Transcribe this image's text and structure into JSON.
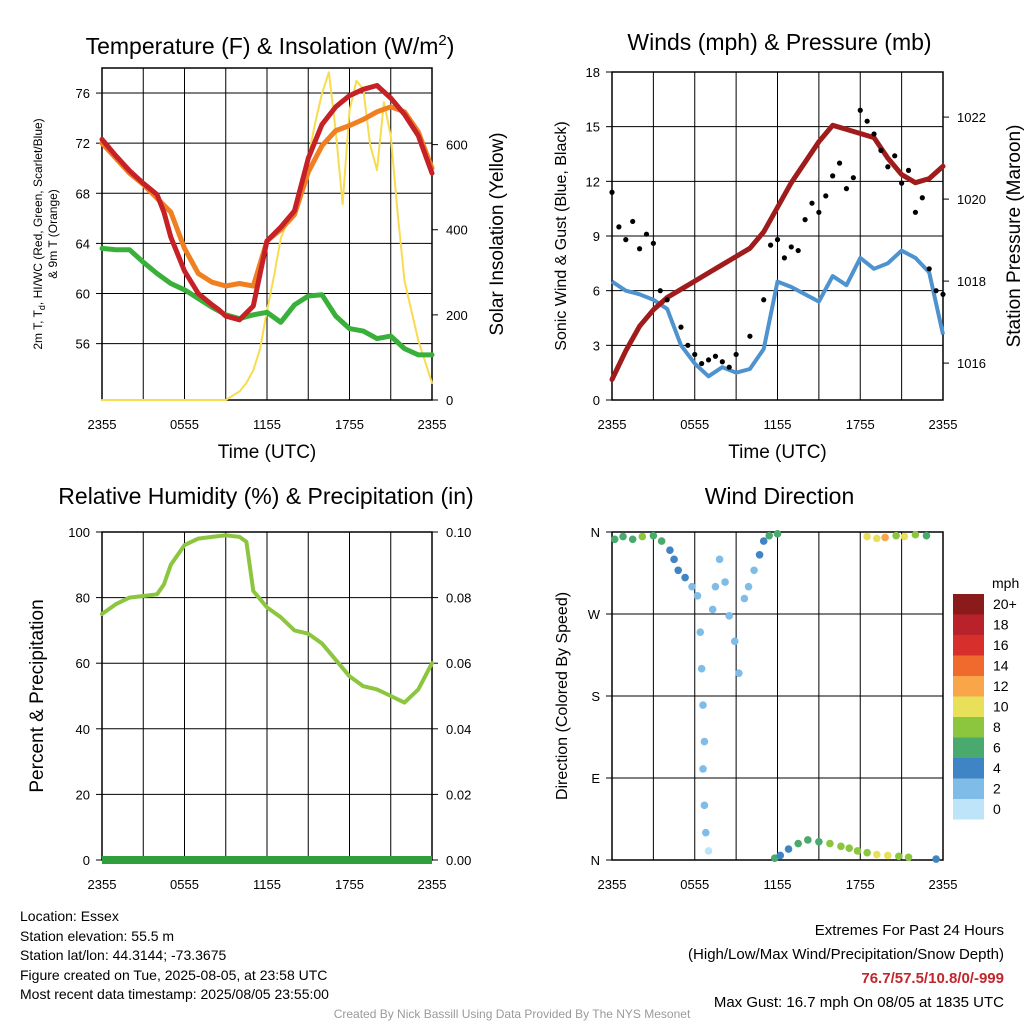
{
  "panels": {
    "temperature": {
      "title_pre": "Temperature (F) & Insolation (W/m",
      "title_sup": "2",
      "title_post": ")",
      "ylabel_left_line1": "2m T, T",
      "ylabel_left_sub": "d",
      "ylabel_left_line1_rest": ", HI/WC (Red, Green, Scarlet/Blue)",
      "ylabel_left_line2": "& 9m T (Orange)",
      "ylabel_right": "Solar Insolation (Yellow)",
      "xlabel": "Time (UTC)"
    },
    "winds": {
      "title": "Winds (mph) & Pressure (mb)",
      "ylabel_left": "Sonic Wind & Gust (Blue, Black)",
      "ylabel_right": "Station Pressure (Maroon)",
      "xlabel": "Time (UTC)"
    },
    "humidity": {
      "title": "Relative Humidity (%) & Precipitation (in)",
      "ylabel_left": "Percent & Precipitation"
    },
    "direction": {
      "title": "Wind Direction",
      "ylabel_left": "Direction (Colored By Speed)",
      "legend_title": "mph"
    }
  },
  "info": {
    "location": "Location: Essex",
    "elevation": "Station elevation: 55.5 m",
    "latlon": "Station lat/lon: 44.3144; -73.3675",
    "created": "Figure created on Tue, 2025-08-05, at 23:58 UTC",
    "recent": "Most recent data timestamp: 2025/08/05 23:55:00"
  },
  "extremes": {
    "heading": "Extremes For Past 24 Hours",
    "subheading": "(High/Low/Max Wind/Precipitation/Snow Depth)",
    "values": "76.7/57.5/10.8/0/-999",
    "max_gust": "Max Gust: 16.7 mph On 08/05 at 1835 UTC"
  },
  "credit": "Created By Nick Bassill Using Data Provided By The NYS Mesonet",
  "chart_data": [
    {
      "type": "line",
      "title": "Temperature (F) & Insolation (W/m2)",
      "xlabel": "Time (UTC)",
      "ylabel": "2m T, Td, HI/WC (Red, Green, Scarlet/Blue) & 9m T (Orange)",
      "y2label": "Solar Insolation (Yellow)",
      "x_ticks": [
        "2355",
        "0555",
        "1155",
        "1755",
        "2355"
      ],
      "x_range_hours": [
        0,
        24
      ],
      "ylim": [
        51.5,
        78
      ],
      "y_ticks": [
        56,
        60,
        64,
        68,
        72,
        76
      ],
      "y2lim": [
        0,
        780
      ],
      "y2_ticks": [
        0,
        200,
        400,
        600
      ],
      "grid": true,
      "colors": {
        "temp_2m": "#c62127",
        "heat_index": "#e01b1b",
        "temp_9m": "#f07f22",
        "dewpoint": "#39b03a",
        "insolation": "#f7dc4f"
      },
      "series": [
        {
          "name": "2m T",
          "axis": "left",
          "color": "#c62127",
          "x": [
            0,
            1,
            2,
            3,
            4,
            4.5,
            5,
            6,
            7,
            8,
            8.5,
            9,
            10,
            11,
            12,
            13,
            14,
            15,
            16,
            17,
            18,
            19,
            20,
            21,
            22,
            23,
            24
          ],
          "y": [
            72.3,
            71.0,
            69.8,
            68.8,
            67.9,
            66.5,
            64.5,
            61.8,
            60.0,
            59.1,
            58.7,
            58.2,
            57.9,
            59.0,
            64.2,
            65.3,
            66.6,
            70.8,
            73.5,
            74.9,
            75.8,
            76.3,
            76.6,
            75.6,
            74.3,
            72.6,
            69.6
          ]
        },
        {
          "name": "9m T",
          "axis": "left",
          "color": "#f07f22",
          "x": [
            0,
            1,
            2,
            3,
            4,
            5,
            6,
            7,
            8,
            9,
            10,
            11,
            12,
            13,
            14,
            15,
            16,
            17,
            18,
            19,
            20,
            21,
            22,
            23,
            24
          ],
          "y": [
            72.0,
            70.8,
            69.6,
            68.7,
            67.6,
            66.5,
            63.6,
            61.6,
            60.9,
            60.6,
            60.8,
            60.6,
            64.2,
            65.1,
            66.3,
            69.7,
            71.8,
            73.0,
            73.4,
            73.9,
            74.5,
            74.9,
            74.5,
            72.9,
            70.0
          ]
        },
        {
          "name": "2m Td",
          "axis": "left",
          "color": "#39b03a",
          "x": [
            0,
            1,
            2,
            3,
            4,
            5,
            6,
            7,
            8,
            9,
            10,
            11,
            12,
            13,
            14,
            15,
            16,
            17,
            18,
            19,
            20,
            21,
            22,
            23,
            24
          ],
          "y": [
            63.6,
            63.5,
            63.5,
            62.5,
            61.6,
            60.8,
            60.3,
            59.6,
            58.9,
            58.3,
            58.0,
            58.3,
            58.5,
            57.7,
            59.1,
            59.8,
            59.9,
            58.2,
            57.2,
            57.0,
            56.4,
            56.6,
            55.6,
            55.1,
            55.1
          ]
        },
        {
          "name": "Solar Insolation",
          "axis": "right",
          "color": "#f7dc4f",
          "x": [
            0,
            9,
            9.5,
            10,
            10.5,
            11,
            11.5,
            12,
            12.5,
            13,
            13.5,
            14,
            14.5,
            15,
            15.5,
            16,
            16.5,
            17,
            17.5,
            18,
            18.5,
            19,
            19.5,
            20,
            20.5,
            21,
            21.5,
            22,
            23,
            24
          ],
          "y": [
            0,
            0,
            10,
            20,
            40,
            70,
            120,
            210,
            290,
            380,
            420,
            450,
            500,
            570,
            650,
            720,
            770,
            630,
            460,
            680,
            750,
            730,
            600,
            540,
            700,
            620,
            440,
            280,
            140,
            40
          ]
        }
      ]
    },
    {
      "type": "line",
      "title": "Winds (mph) & Pressure (mb)",
      "xlabel": "Time (UTC)",
      "ylabel": "Sonic Wind & Gust (Blue, Black)",
      "y2label": "Station Pressure (Maroon)",
      "x_ticks": [
        "2355",
        "0555",
        "1155",
        "1755",
        "2355"
      ],
      "x_range_hours": [
        0,
        24
      ],
      "ylim": [
        0,
        18
      ],
      "y_ticks": [
        0,
        3,
        6,
        9,
        12,
        15,
        18
      ],
      "y2lim": [
        1015.1,
        1023.1
      ],
      "y2_ticks": [
        1016,
        1018,
        1020,
        1022
      ],
      "grid": true,
      "colors": {
        "wind": "#4e93cf",
        "gust": "#000000",
        "pressure": "#a01b1b"
      },
      "series": [
        {
          "name": "Sonic Wind",
          "axis": "left",
          "color": "#4e93cf",
          "x": [
            0,
            1,
            2,
            3,
            4,
            5,
            6,
            7,
            8,
            9,
            10,
            11,
            12,
            13,
            14,
            15,
            16,
            17,
            18,
            19,
            20,
            21,
            22,
            23,
            24
          ],
          "y": [
            6.5,
            6.0,
            5.8,
            5.5,
            5.0,
            3.0,
            2.0,
            1.3,
            1.8,
            1.5,
            1.7,
            2.8,
            6.5,
            6.2,
            5.8,
            5.4,
            6.8,
            6.3,
            7.8,
            7.2,
            7.5,
            8.2,
            7.8,
            7.0,
            3.6
          ]
        },
        {
          "name": "Gust",
          "axis": "left",
          "color": "#000000",
          "type": "scatter",
          "x": [
            0,
            0.5,
            1,
            1.5,
            2,
            2.5,
            3,
            3.5,
            4,
            5,
            5.5,
            6,
            6.5,
            7,
            7.5,
            8,
            8.5,
            9,
            10,
            11,
            11.5,
            12,
            12.5,
            13,
            13.5,
            14,
            14.5,
            15,
            15.5,
            16,
            16.5,
            17,
            17.5,
            18,
            18.5,
            19,
            19.5,
            20,
            20.5,
            21,
            21.5,
            22,
            22.5,
            23,
            23.5,
            24
          ],
          "y": [
            11.4,
            9.5,
            8.8,
            9.8,
            8.3,
            9.1,
            8.6,
            6.0,
            5.5,
            4.0,
            3.0,
            2.5,
            2.0,
            2.2,
            2.4,
            2.1,
            1.8,
            2.5,
            3.5,
            5.5,
            8.5,
            8.8,
            7.8,
            8.4,
            8.2,
            9.9,
            10.8,
            10.3,
            11.2,
            12.3,
            13.0,
            11.6,
            12.2,
            15.9,
            15.3,
            14.6,
            13.7,
            12.8,
            13.4,
            11.9,
            12.6,
            10.3,
            11.1,
            7.2,
            6.0,
            5.8
          ]
        },
        {
          "name": "Station Pressure",
          "axis": "right",
          "color": "#a01b1b",
          "x": [
            0,
            1,
            2,
            3,
            4,
            5,
            6,
            7,
            8,
            9,
            10,
            11,
            12,
            13,
            14,
            15,
            16,
            17,
            18,
            19,
            20,
            21,
            22,
            23,
            24
          ],
          "y": [
            1015.6,
            1016.3,
            1016.9,
            1017.3,
            1017.6,
            1017.8,
            1018.0,
            1018.2,
            1018.4,
            1018.6,
            1018.8,
            1019.2,
            1019.8,
            1020.4,
            1020.9,
            1021.4,
            1021.8,
            1021.7,
            1021.6,
            1021.5,
            1021.0,
            1020.6,
            1020.4,
            1020.5,
            1020.8
          ]
        }
      ]
    },
    {
      "type": "line",
      "title": "Relative Humidity (%) & Precipitation (in)",
      "ylabel": "Percent & Precipitation",
      "x_ticks": [
        "2355",
        "0555",
        "1155",
        "1755",
        "2355"
      ],
      "x_range_hours": [
        0,
        24
      ],
      "ylim": [
        0,
        100
      ],
      "y_ticks": [
        0,
        20,
        40,
        60,
        80,
        100
      ],
      "y2lim": [
        0,
        0.1
      ],
      "y2_ticks": [
        "0.00",
        "0.02",
        "0.04",
        "0.06",
        "0.08",
        "0.10"
      ],
      "grid": true,
      "colors": {
        "rh": "#8cc63f",
        "precip": "#2f9e3c"
      },
      "series": [
        {
          "name": "Relative Humidity",
          "axis": "left",
          "color": "#8cc63f",
          "x": [
            0,
            1,
            2,
            3,
            4,
            4.5,
            5,
            5.5,
            6,
            7,
            8,
            9,
            10,
            10.5,
            11,
            12,
            13,
            14,
            15,
            16,
            17,
            18,
            19,
            20,
            21,
            22,
            23,
            24
          ],
          "y": [
            75,
            78,
            80,
            80.5,
            81,
            84,
            90,
            93,
            96,
            98,
            98.5,
            99,
            98.5,
            97,
            82,
            77,
            74,
            70,
            69,
            66,
            61,
            56,
            53,
            52,
            50,
            48,
            52,
            60
          ]
        },
        {
          "name": "Precipitation",
          "axis": "right",
          "color": "#2f9e3c",
          "x": [
            0,
            24
          ],
          "y": [
            0,
            0
          ]
        }
      ]
    },
    {
      "type": "scatter",
      "title": "Wind Direction",
      "ylabel": "Direction (Colored By Speed)",
      "x_ticks": [
        "2355",
        "0555",
        "1155",
        "1755",
        "2355"
      ],
      "x_range_hours": [
        0,
        24
      ],
      "ylim": [
        0,
        360
      ],
      "y_ticks": [
        "N",
        "E",
        "S",
        "W",
        "N"
      ],
      "grid": true,
      "legend": {
        "title": "mph",
        "position": "right",
        "labels": [
          "20+",
          "18",
          "16",
          "14",
          "12",
          "10",
          "8",
          "6",
          "4",
          "2",
          "0"
        ],
        "colors": [
          "#8b1a1a",
          "#b9222a",
          "#d7302c",
          "#ef6a2c",
          "#f9a64b",
          "#e9e05a",
          "#8cc63f",
          "#4aaa6e",
          "#3f84c5",
          "#7fbde8",
          "#bde4f8"
        ]
      },
      "series": [
        {
          "name": "Direction",
          "points": [
            [
              0.2,
              352,
              6
            ],
            [
              0.8,
              355,
              6
            ],
            [
              1.5,
              352,
              6
            ],
            [
              2.2,
              355,
              7
            ],
            [
              3,
              356,
              6
            ],
            [
              3.6,
              350,
              5
            ],
            [
              4.2,
              340,
              4
            ],
            [
              4.5,
              330,
              3
            ],
            [
              4.8,
              318,
              3
            ],
            [
              5.3,
              310,
              3
            ],
            [
              5.8,
              300,
              2
            ],
            [
              6.2,
              290,
              1
            ],
            [
              6.4,
              250,
              1
            ],
            [
              6.5,
              210,
              1
            ],
            [
              6.6,
              170,
              1
            ],
            [
              6.7,
              130,
              1
            ],
            [
              6.6,
              100,
              1
            ],
            [
              6.7,
              60,
              1
            ],
            [
              6.8,
              30,
              1
            ],
            [
              7.0,
              10,
              0
            ],
            [
              7.3,
              275,
              1
            ],
            [
              7.5,
              300,
              1
            ],
            [
              7.8,
              330,
              1
            ],
            [
              8.2,
              305,
              1
            ],
            [
              8.5,
              268,
              1
            ],
            [
              8.9,
              240,
              1
            ],
            [
              9.2,
              205,
              1
            ],
            [
              9.6,
              287,
              1
            ],
            [
              9.9,
              300,
              1
            ],
            [
              10.3,
              318,
              2
            ],
            [
              10.7,
              335,
              3
            ],
            [
              11,
              350,
              4
            ],
            [
              11.4,
              356,
              5
            ],
            [
              12,
              358,
              6
            ],
            [
              11.8,
              2,
              5
            ],
            [
              12.2,
              5,
              4
            ],
            [
              12.8,
              12,
              4
            ],
            [
              13.5,
              18,
              5
            ],
            [
              14.2,
              22,
              6
            ],
            [
              15,
              20,
              6
            ],
            [
              15.8,
              18,
              7
            ],
            [
              16.6,
              15,
              7
            ],
            [
              17.2,
              13,
              8
            ],
            [
              17.8,
              10,
              8
            ],
            [
              18.5,
              8,
              8
            ],
            [
              19.2,
              6,
              9
            ],
            [
              20,
              5,
              10
            ],
            [
              20.8,
              4,
              8
            ],
            [
              21.5,
              3,
              7
            ],
            [
              23.5,
              1,
              4
            ],
            [
              18.5,
              355,
              9
            ],
            [
              19.2,
              353,
              10
            ],
            [
              19.8,
              354,
              11
            ],
            [
              20.6,
              356,
              8
            ],
            [
              21.2,
              355,
              9
            ],
            [
              22,
              357,
              7
            ],
            [
              22.8,
              356,
              6
            ]
          ]
        }
      ]
    }
  ]
}
